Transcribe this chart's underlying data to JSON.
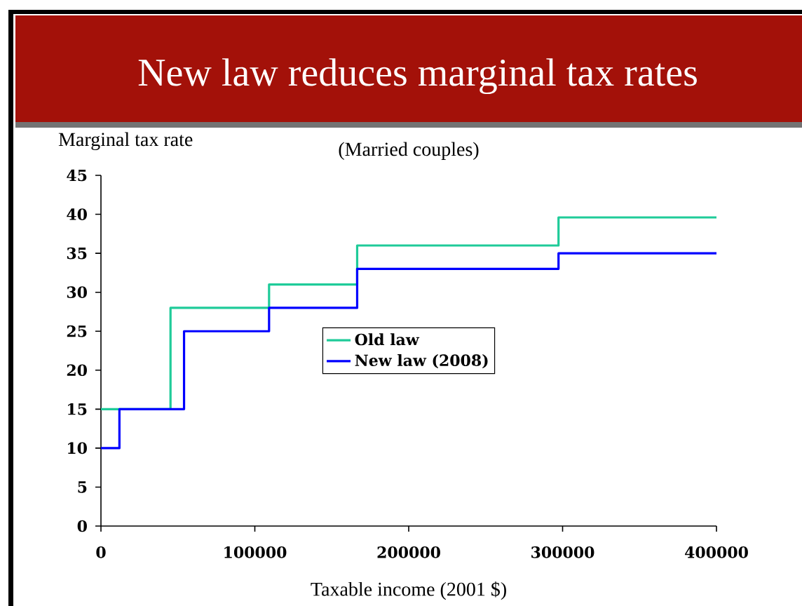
{
  "chart_data": {
    "type": "step",
    "title": "New law reduces marginal tax rates",
    "subtitle": "(Married couples)",
    "xlabel": "Taxable income (2001 $)",
    "ylabel": "Marginal tax rate",
    "series": [
      {
        "name": "Old law",
        "color": "#1fcb99",
        "x": [
          0,
          45200,
          109250,
          166500,
          297350,
          400000
        ],
        "values": [
          15,
          28,
          31,
          36,
          39.6,
          39.6
        ]
      },
      {
        "name": "New law (2008)",
        "color": "#0000ff",
        "x": [
          0,
          12000,
          54000,
          109250,
          166500,
          297350,
          400000
        ],
        "values": [
          10,
          15,
          25,
          28,
          33,
          35,
          35
        ]
      }
    ],
    "xlim": [
      0,
      400000
    ],
    "xticks": [
      0,
      100000,
      200000,
      300000,
      400000
    ],
    "ylim": [
      0,
      45
    ],
    "yticks": [
      0,
      5,
      10,
      15,
      20,
      25,
      30,
      35,
      40,
      45
    ],
    "legend": "center"
  }
}
